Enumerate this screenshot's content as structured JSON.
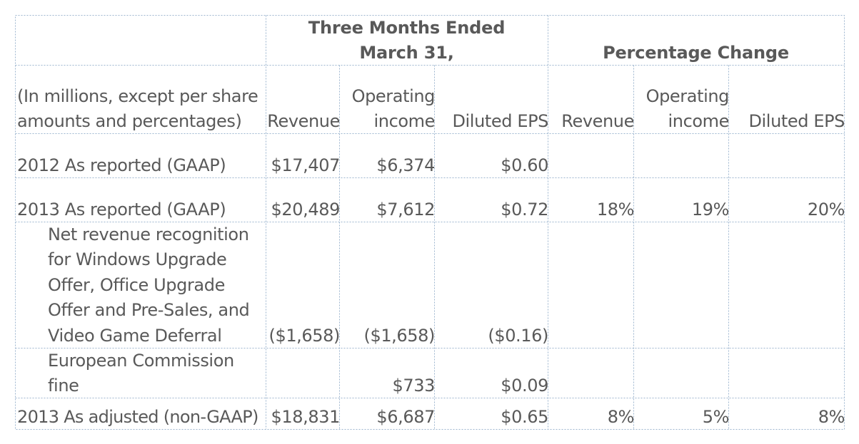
{
  "header": {
    "three_months_line1": "Three Months Ended",
    "three_months_line2": "March 31,",
    "percentage_change": "Percentage Change"
  },
  "columns": {
    "desc_line1": "(In millions, except per share",
    "desc_line2": "amounts and percentages)",
    "revenue": "Revenue",
    "operating_line1": "Operating",
    "operating_line2": "income",
    "diluted_eps": "Diluted EPS",
    "pct_revenue": "Revenue",
    "pct_operating_line1": "Operating",
    "pct_operating_line2": "income",
    "pct_diluted_eps": "Diluted EPS"
  },
  "rows": [
    {
      "label": "2012 As reported (GAAP)",
      "revenue": "$17,407",
      "operating_income": "$6,374",
      "diluted_eps": "$0.60",
      "pct_revenue": "",
      "pct_operating_income": "",
      "pct_diluted_eps": ""
    },
    {
      "label": "2013 As reported (GAAP)",
      "revenue": "$20,489",
      "operating_income": "$7,612",
      "diluted_eps": "$0.72",
      "pct_revenue": "18%",
      "pct_operating_income": "19%",
      "pct_diluted_eps": "20%"
    },
    {
      "label_lines": [
        "Net revenue recognition",
        "for Windows Upgrade",
        "Offer, Office Upgrade",
        "Offer and Pre-Sales, and",
        "Video Game Deferral"
      ],
      "revenue": "($1,658)",
      "operating_income": "($1,658)",
      "diluted_eps": "($0.16)"
    },
    {
      "label_lines": [
        "European Commission",
        "fine"
      ],
      "revenue": "",
      "operating_income": "$733",
      "diluted_eps": "$0.09"
    },
    {
      "label": "2013 As adjusted (non-GAAP)",
      "revenue": "$18,831",
      "operating_income": "$6,687",
      "diluted_eps": "$0.65",
      "pct_revenue": "8%",
      "pct_operating_income": "5%",
      "pct_diluted_eps": "8%"
    }
  ],
  "colors": {
    "text": "#595959",
    "grid": "#9db6cf"
  }
}
